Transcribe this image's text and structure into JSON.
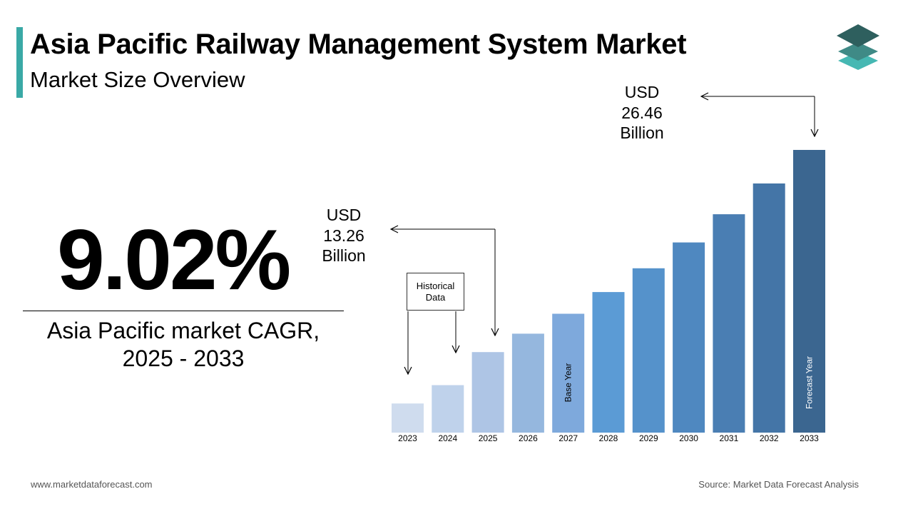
{
  "header": {
    "title": "Asia Pacific Railway Management System Market",
    "subtitle": "Market Size Overview"
  },
  "cagr": {
    "value": "9.02%",
    "caption_line1": "Asia Pacific market CAGR,",
    "caption_line2": "2025 - 2033"
  },
  "callouts": {
    "start": {
      "line1": "USD",
      "line2": "13.26",
      "line3": "Billion",
      "year": "2025"
    },
    "end": {
      "line1": "USD",
      "line2": "26.46",
      "line3": "Billion",
      "year": "2033"
    },
    "historical_label": "Historical Data"
  },
  "chart_data": {
    "type": "bar",
    "categories": [
      "2023",
      "2024",
      "2025",
      "2026",
      "2027",
      "2028",
      "2029",
      "2030",
      "2031",
      "2032",
      "2033"
    ],
    "values": [
      9.9,
      11.1,
      13.26,
      14.46,
      15.76,
      17.18,
      18.73,
      20.42,
      22.26,
      24.27,
      26.46
    ],
    "ylim": [
      8,
      26.46
    ],
    "bar_colors": [
      "#cfdcee",
      "#bfd2eb",
      "#aec5e5",
      "#95b7de",
      "#7ea9dc",
      "#5b9bd5",
      "#5592cb",
      "#4f88c0",
      "#4a7eb3",
      "#4475a7",
      "#3b6690"
    ],
    "bar_labels": {
      "2027": "Base Year",
      "2033": "Forecast Year"
    },
    "bar_label_colors": {
      "2027": "#000000",
      "2033": "#ffffff"
    },
    "annotations": [
      {
        "year": "2025",
        "text": "USD 13.26 Billion"
      },
      {
        "year": "2033",
        "text": "USD 26.46 Billion"
      }
    ]
  },
  "footer": {
    "website": "www.marketdataforecast.com",
    "source": "Source: Market Data Forecast Analysis"
  },
  "colors": {
    "accent": "#3aa9a6",
    "logo_top": "#2e5f5e",
    "logo_middle": "#3f8a86",
    "logo_bottom": "#46b8b3"
  }
}
